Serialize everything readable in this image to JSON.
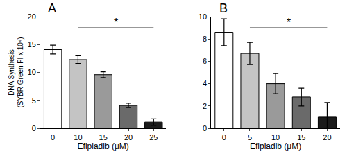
{
  "chart_data": [
    {
      "type": "bar",
      "title": "A",
      "xlabel": "Efipladib (μM)",
      "ylabel": [
        "DNA Synthesis",
        "(SYBR Green FI x 10⁴)"
      ],
      "categories": [
        "0",
        "10",
        "15",
        "20",
        "25"
      ],
      "values": [
        14.1,
        12.3,
        9.6,
        4.1,
        1.1
      ],
      "errors": [
        0.8,
        0.7,
        0.5,
        0.4,
        0.6
      ],
      "colors": [
        "#ffffff",
        "#c4c4c4",
        "#9a9a9a",
        "#6a6a6a",
        "#1a1a1a"
      ],
      "ylim": [
        0,
        20
      ],
      "yticks": [
        0,
        5,
        10,
        15,
        20
      ],
      "grid": false,
      "annotations": [
        {
          "text": "*",
          "from": "10",
          "to": "25"
        }
      ]
    },
    {
      "type": "bar",
      "title": "B",
      "xlabel": "Efipladib (μM)",
      "categories": [
        "0",
        "5",
        "10",
        "15",
        "20"
      ],
      "values": [
        8.6,
        6.7,
        4.0,
        2.8,
        1.0
      ],
      "errors": [
        1.2,
        1.0,
        0.9,
        0.8,
        1.3
      ],
      "colors": [
        "#ffffff",
        "#c4c4c4",
        "#9a9a9a",
        "#6a6a6a",
        "#1a1a1a"
      ],
      "ylim": [
        0,
        10
      ],
      "yticks": [
        0,
        2,
        4,
        6,
        8,
        10
      ],
      "grid": false,
      "annotations": [
        {
          "text": "*",
          "from": "5",
          "to": "20"
        }
      ]
    }
  ]
}
